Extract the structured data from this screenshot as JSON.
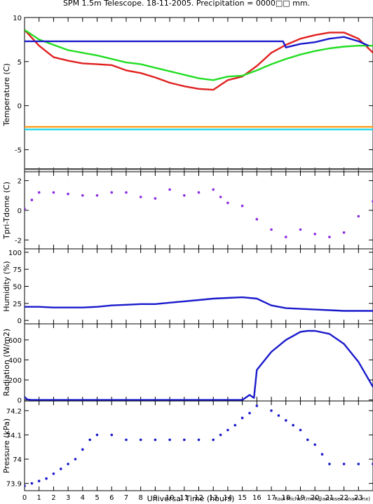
{
  "figure": {
    "title": "SPM 1.5m Telescope. 18-11-2005. Precipitation = 0000□□ mm.",
    "xlabel": "Universal Time (hours)",
    "credit": "Raul Michel (rmm@astrosen.unam.mx)"
  },
  "colors": {
    "red": "#e02020",
    "green": "#22dd22",
    "blue": "#1a1acc",
    "purple": "#8a2be2",
    "orange": "#ff9a1a",
    "cyan": "#22d7e6",
    "gray": "#555555"
  },
  "chart_data": [
    {
      "type": "line",
      "ylabel": "Temperature (C)",
      "xlim": [
        0,
        24
      ],
      "ylim": [
        -7.5,
        10
      ],
      "xticks": [
        "0",
        "1",
        "2",
        "3",
        "4",
        "5",
        "6",
        "7",
        "8",
        "9",
        "10",
        "11",
        "12",
        "13",
        "14",
        "15",
        "16",
        "17",
        "18",
        "19",
        "20",
        "21",
        "22",
        "23"
      ],
      "yticks": [
        "10",
        "5",
        "0",
        "-5"
      ],
      "grid": false,
      "series": [
        {
          "color": "red",
          "x": [
            0,
            1,
            2,
            3,
            4,
            5,
            6,
            7,
            8,
            9,
            10,
            11,
            12,
            13,
            14,
            15,
            16,
            17,
            18,
            19,
            20,
            21,
            22,
            23,
            24
          ],
          "y": [
            8.6,
            6.8,
            5.5,
            5.1,
            4.8,
            4.7,
            4.6,
            4.0,
            3.7,
            3.2,
            2.6,
            2.2,
            1.9,
            1.8,
            2.9,
            3.3,
            4.5,
            6.0,
            6.9,
            7.6,
            8.0,
            8.3,
            8.3,
            7.6,
            6.0
          ]
        },
        {
          "color": "green",
          "x": [
            0,
            1,
            2,
            3,
            4,
            5,
            6,
            7,
            8,
            9,
            10,
            11,
            12,
            13,
            14,
            15,
            16,
            17,
            18,
            19,
            20,
            21,
            22,
            23,
            24
          ],
          "y": [
            8.6,
            7.5,
            6.9,
            6.3,
            6.0,
            5.7,
            5.3,
            4.9,
            4.7,
            4.3,
            3.9,
            3.5,
            3.1,
            2.9,
            3.3,
            3.4,
            4.0,
            4.7,
            5.3,
            5.8,
            6.2,
            6.5,
            6.7,
            6.8,
            6.8
          ]
        },
        {
          "color": "blue",
          "x": [
            0,
            17.8,
            18,
            19,
            20,
            21,
            22,
            23,
            23.7
          ],
          "y": [
            7.3,
            7.3,
            6.6,
            7.0,
            7.2,
            7.6,
            7.8,
            7.3,
            6.8
          ]
        },
        {
          "color": "orange",
          "x": [
            0,
            24
          ],
          "y": [
            -2.4,
            -2.4
          ]
        },
        {
          "color": "cyan",
          "x": [
            0,
            24
          ],
          "y": [
            -2.7,
            -2.7
          ]
        },
        {
          "color": "gray",
          "x": [
            0,
            24
          ],
          "y": [
            -7.2,
            -7.2
          ]
        }
      ]
    },
    {
      "type": "scatter",
      "ylabel": "Tpri-Tdome (C)",
      "xlim": [
        0,
        24
      ],
      "ylim": [
        -2.6,
        2.6
      ],
      "yticks": [
        "2",
        "0",
        "-2"
      ],
      "series": [
        {
          "color": "purple",
          "x": [
            0,
            0.5,
            1,
            2,
            3,
            4,
            5,
            6,
            7,
            8,
            9,
            10,
            11,
            12,
            13,
            13.5,
            14,
            15,
            16,
            17,
            18,
            19,
            20,
            21,
            22,
            23,
            24
          ],
          "y": [
            0.1,
            0.7,
            1.2,
            1.2,
            1.1,
            1.0,
            1.0,
            1.2,
            1.2,
            0.9,
            0.8,
            1.4,
            1.0,
            1.2,
            1.4,
            0.9,
            0.5,
            0.3,
            -0.6,
            -1.3,
            -1.8,
            -1.3,
            -1.6,
            -1.8,
            -1.5,
            -0.4,
            0.6
          ]
        }
      ]
    },
    {
      "type": "line",
      "ylabel": "Humidity (%)",
      "xlim": [
        0,
        24
      ],
      "ylim": [
        -5,
        105
      ],
      "yticks": [
        "0",
        "25",
        "50",
        "75",
        "100"
      ],
      "series": [
        {
          "color": "blue",
          "x": [
            0,
            1,
            2,
            3,
            4,
            5,
            6,
            7,
            8,
            9,
            10,
            11,
            12,
            13,
            14,
            15,
            16,
            17,
            18,
            19,
            20,
            21,
            22,
            23,
            24
          ],
          "y": [
            20,
            20,
            19,
            19,
            19,
            20,
            22,
            23,
            24,
            24,
            26,
            28,
            30,
            32,
            33,
            34,
            32,
            22,
            18,
            17,
            16,
            15,
            14,
            14,
            14
          ]
        }
      ]
    },
    {
      "type": "line",
      "ylabel": "Radiation (W/m2)",
      "xlim": [
        0,
        24
      ],
      "ylim": [
        -10,
        760
      ],
      "yticks": [
        "0",
        "200",
        "400",
        "600"
      ],
      "series": [
        {
          "color": "blue",
          "x": [
            0,
            0.2,
            0.5,
            1,
            15,
            15.5,
            15.8,
            16,
            17,
            18,
            19,
            19.5,
            20,
            21,
            22,
            23,
            24
          ],
          "y": [
            30,
            5,
            0,
            0,
            0,
            50,
            20,
            300,
            480,
            600,
            680,
            690,
            690,
            660,
            560,
            380,
            130
          ]
        }
      ]
    },
    {
      "type": "scatter",
      "ylabel": "Pressure (kPa)",
      "xlim": [
        0,
        24
      ],
      "ylim": [
        73.87,
        74.24
      ],
      "yticks": [
        "73.9",
        "74",
        "74.1",
        "74.2"
      ],
      "series": [
        {
          "color": "blue",
          "x": [
            0,
            0.5,
            1,
            1.5,
            2,
            2.5,
            3,
            3.5,
            4,
            4.5,
            5,
            6,
            7,
            8,
            9,
            10,
            11,
            12,
            13,
            13.5,
            14,
            14.5,
            15,
            15.5,
            16,
            17,
            17.5,
            18,
            18.5,
            19,
            19.5,
            20,
            20.5,
            21,
            22,
            23,
            24
          ],
          "y": [
            73.89,
            73.9,
            73.91,
            73.92,
            73.94,
            73.96,
            73.98,
            74.0,
            74.04,
            74.08,
            74.1,
            74.1,
            74.08,
            74.08,
            74.08,
            74.08,
            74.08,
            74.08,
            74.08,
            74.1,
            74.12,
            74.14,
            74.17,
            74.19,
            74.22,
            74.2,
            74.18,
            74.16,
            74.14,
            74.12,
            74.08,
            74.06,
            74.02,
            73.98,
            73.98,
            73.98,
            73.98
          ]
        }
      ]
    }
  ]
}
